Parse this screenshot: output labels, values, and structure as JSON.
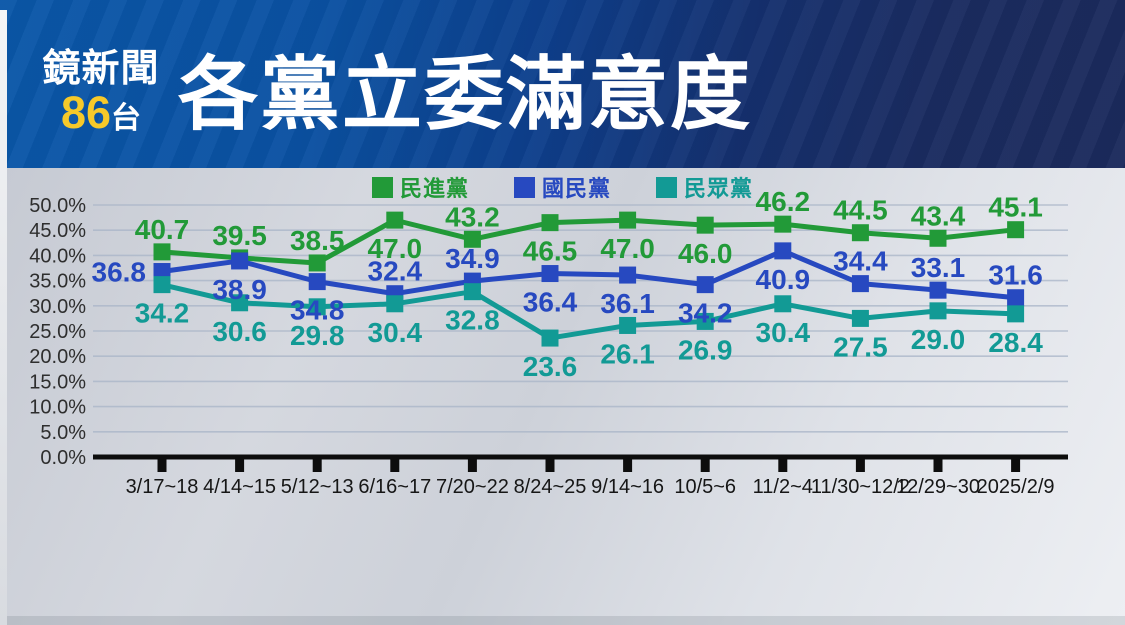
{
  "header": {
    "logo": {
      "line1": "鏡新聞",
      "number": "86",
      "suffix": "台"
    },
    "title": "各黨立委滿意度"
  },
  "chart_data": {
    "type": "line",
    "title": "各黨立委滿意度",
    "categories": [
      "3/17~18",
      "4/14~15",
      "5/12~13",
      "6/16~17",
      "7/20~22",
      "8/24~25",
      "9/14~16",
      "10/5~6",
      "11/2~4",
      "11/30~12/2",
      "12/29~30",
      "2025/2/9"
    ],
    "series": [
      {
        "name": "民進黨",
        "color": "#229a38",
        "values": [
          40.7,
          39.5,
          38.5,
          47.0,
          43.2,
          46.5,
          47.0,
          46.0,
          46.2,
          44.5,
          43.4,
          45.1
        ],
        "label_side": [
          "above",
          "above",
          "above",
          "below",
          "above",
          "below",
          "below",
          "below",
          "above",
          "above",
          "above",
          "above"
        ]
      },
      {
        "name": "國民黨",
        "color": "#2749c0",
        "values": [
          36.8,
          38.9,
          34.8,
          32.4,
          34.9,
          36.4,
          36.1,
          34.2,
          40.9,
          34.4,
          33.1,
          31.6
        ],
        "label_side": [
          "left",
          "below",
          "below",
          "above",
          "above",
          "below",
          "below",
          "below",
          "below",
          "above",
          "above",
          "above"
        ]
      },
      {
        "name": "民眾黨",
        "color": "#129a95",
        "values": [
          34.2,
          30.6,
          29.8,
          30.4,
          32.8,
          23.6,
          26.1,
          26.9,
          30.4,
          27.5,
          29.0,
          28.4
        ],
        "label_side": [
          "below",
          "below",
          "below",
          "below",
          "below",
          "below",
          "below",
          "below",
          "below",
          "below",
          "below",
          "below"
        ]
      }
    ],
    "y_axis": {
      "min": 0,
      "max": 50,
      "step": 5,
      "tick_labels": [
        "0.0%",
        "5.0%",
        "10.0%",
        "15.0%",
        "20.0%",
        "25.0%",
        "30.0%",
        "35.0%",
        "40.0%",
        "45.0%",
        "50.0%"
      ]
    },
    "grid": true,
    "legend_position": "top",
    "marker": "square"
  }
}
